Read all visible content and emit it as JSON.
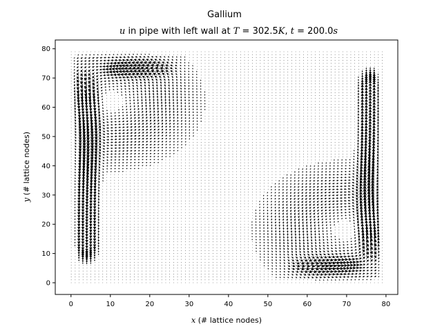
{
  "chart_data": {
    "type": "quiver",
    "title": "Gallium",
    "subtitle_prefix": "u",
    "subtitle_mid": " in pipe with left wall at ",
    "subtitle_T_var": "T",
    "subtitle_T_value": " = 302.5",
    "subtitle_T_unit": "K",
    "subtitle_sep": ", ",
    "subtitle_t_var": "t",
    "subtitle_t_value": " = 200.0",
    "subtitle_t_unit": "s",
    "xlabel_var": "x",
    "xlabel_rest": " (# lattice nodes)",
    "ylabel_var": "y",
    "ylabel_rest": " (# lattice nodes)",
    "xlim": [
      -4,
      83
    ],
    "ylim": [
      -4,
      83
    ],
    "xticks": [
      0,
      10,
      20,
      30,
      40,
      50,
      60,
      70,
      80
    ],
    "yticks": [
      0,
      10,
      20,
      30,
      40,
      50,
      60,
      70,
      80
    ],
    "grid": false,
    "domain": {
      "nx": 80,
      "ny": 80
    },
    "flow": {
      "description_type": "double-gyre vortex",
      "vortices": [
        {
          "cx": 10,
          "cy": 62,
          "strength": 1.0
        },
        {
          "cx": 70,
          "cy": 18,
          "strength": 1.0
        }
      ],
      "left_wall_jet": {
        "x": 4,
        "y_range": [
          8,
          72
        ],
        "direction": "down"
      },
      "right_wall_jet": {
        "x": 76,
        "y_range": [
          8,
          72
        ],
        "direction": "up"
      },
      "top_jet": {
        "y": 73,
        "x_range": [
          10,
          26
        ],
        "direction": "left"
      },
      "bottom_jet": {
        "y": 6,
        "x_range": [
          56,
          72
        ],
        "direction": "right"
      }
    },
    "arrow_color": "#000000"
  }
}
